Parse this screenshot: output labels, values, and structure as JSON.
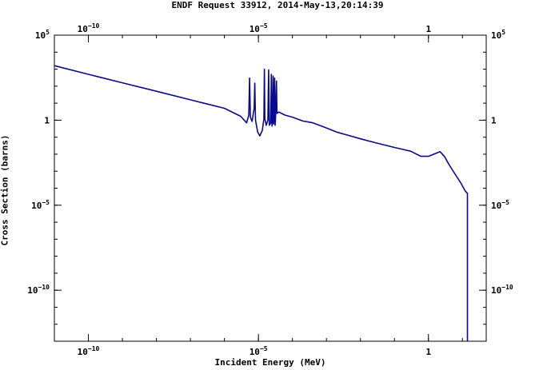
{
  "chart_data": {
    "type": "line",
    "title": "ENDF Request 33912, 2014-May-13,20:14:39",
    "xlabel": "Incident Energy (MeV)",
    "ylabel": "Cross Section (barns)",
    "xscale": "log",
    "yscale": "log",
    "xlim": [
      1e-11,
      50
    ],
    "ylim": [
      1e-13,
      100000.0
    ],
    "grid": false,
    "legend": "none",
    "line_color": "#0a0a8c",
    "xticks": [
      {
        "value": 1e-10,
        "base": "10",
        "exp": "−10"
      },
      {
        "value": 1e-05,
        "base": "10",
        "exp": "−5"
      },
      {
        "value": 1,
        "base": "1",
        "exp": ""
      }
    ],
    "yticks": [
      {
        "value": 100000.0,
        "base": "10",
        "exp": "5"
      },
      {
        "value": 1,
        "base": "1",
        "exp": ""
      },
      {
        "value": 1e-05,
        "base": "10",
        "exp": "−5"
      },
      {
        "value": 1e-10,
        "base": "10",
        "exp": "−10"
      }
    ],
    "series": [
      {
        "x": [
          1e-11,
          1e-10,
          1e-09,
          1e-08,
          1e-07,
          1e-06,
          3e-06,
          4.5e-06,
          5.2e-06,
          5.5e-06,
          5.8e-06,
          6.5e-06,
          7.5e-06,
          7.8e-06,
          8.2e-06,
          9.5e-06,
          1.1e-05,
          1.3e-05,
          1.45e-05,
          1.5e-05,
          1.55e-05,
          1.7e-05,
          1.9e-05,
          2e-05,
          2.1e-05,
          2.3e-05,
          2.4e-05,
          2.5e-05,
          2.6e-05,
          2.7e-05,
          2.8e-05,
          2.9e-05,
          3e-05,
          3.1e-05,
          3.2e-05,
          3.4e-05,
          3.5e-05,
          4e-05,
          6e-05,
          0.0001,
          0.0002,
          0.0004,
          0.001,
          0.002,
          0.005,
          0.01,
          0.03,
          0.1,
          0.3,
          0.6,
          1.0,
          1.6,
          2.2,
          3.0,
          4.0,
          6.0,
          9.0,
          12.0,
          14.0,
          14.0
        ],
        "y": [
          1600,
          500,
          158,
          50,
          15.8,
          5.0,
          1.7,
          0.7,
          2.0,
          300,
          1.5,
          0.85,
          5.0,
          150,
          1.0,
          0.2,
          0.12,
          0.25,
          1.2,
          1000,
          1.2,
          0.5,
          1.0,
          900,
          0.5,
          0.7,
          500,
          0.45,
          0.9,
          400,
          0.6,
          2.0,
          300,
          0.5,
          1.5,
          200,
          2.5,
          3.0,
          2.0,
          1.5,
          0.9,
          0.7,
          0.35,
          0.2,
          0.12,
          0.08,
          0.045,
          0.025,
          0.015,
          0.0075,
          0.0075,
          0.011,
          0.014,
          0.007,
          0.0025,
          0.0007,
          0.0002,
          7e-05,
          5e-05,
          1e-13
        ]
      }
    ]
  }
}
